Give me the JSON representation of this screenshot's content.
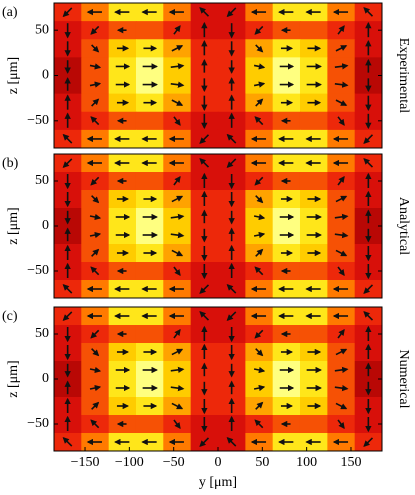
{
  "chart_data": [
    {
      "type": "heatmap",
      "annotation": "(a)",
      "side_label": "Experimental",
      "ylabel": "z [μm]",
      "xlim": [
        -185,
        185
      ],
      "ylim": [
        -80,
        80
      ],
      "yticks": [
        50,
        0,
        {
          "value": -50,
          "label": "−50"
        }
      ],
      "zlim": [
        0,
        1
      ],
      "colormap": [
        "#9a0000",
        "#e8140c",
        "#ff7a00",
        "#ffe000",
        "#ffff80"
      ],
      "x": [
        -169.6,
        -138.8,
        -107.9,
        -77.1,
        -46.3,
        -15.4,
        15.4,
        46.3,
        77.1,
        107.9,
        138.8,
        169.6
      ],
      "y": [
        70,
        50,
        30,
        10,
        -10,
        -30,
        -50,
        -70
      ],
      "z": [
        [
          0.3,
          0.5,
          0.8,
          0.8,
          0.5,
          0.2,
          0.2,
          0.5,
          0.8,
          0.8,
          0.5,
          0.3
        ],
        [
          0.2,
          0.3,
          0.4,
          0.4,
          0.3,
          0.2,
          0.2,
          0.3,
          0.4,
          0.4,
          0.3,
          0.2
        ],
        [
          0.2,
          0.4,
          0.7,
          0.8,
          0.6,
          0.3,
          0.3,
          0.6,
          0.8,
          0.7,
          0.4,
          0.2
        ],
        [
          0.1,
          0.4,
          0.8,
          1,
          0.7,
          0.3,
          0.3,
          0.7,
          1,
          0.8,
          0.4,
          0.1
        ],
        [
          0.1,
          0.4,
          0.8,
          1,
          0.7,
          0.3,
          0.3,
          0.7,
          1,
          0.8,
          0.4,
          0.1
        ],
        [
          0.2,
          0.4,
          0.7,
          0.8,
          0.6,
          0.3,
          0.3,
          0.6,
          0.8,
          0.7,
          0.4,
          0.2
        ],
        [
          0.2,
          0.3,
          0.4,
          0.4,
          0.3,
          0.2,
          0.2,
          0.3,
          0.4,
          0.4,
          0.3,
          0.2
        ],
        [
          0.3,
          0.5,
          0.8,
          0.8,
          0.5,
          0.2,
          0.2,
          0.5,
          0.8,
          0.8,
          0.5,
          0.3
        ]
      ],
      "u": [
        [
          -0.5,
          -1,
          -1,
          -1,
          -1,
          -0.5,
          -0.5,
          -1,
          -1,
          -1,
          -1,
          -0.5
        ],
        [
          0,
          -0.4,
          -0.3,
          0,
          0.3,
          0,
          0,
          -0.4,
          -0.3,
          0,
          0.3,
          0
        ],
        [
          0,
          0.3,
          0.6,
          0.8,
          0.6,
          0,
          0,
          0.3,
          0.6,
          0.8,
          0.6,
          0
        ],
        [
          0,
          0.5,
          0.9,
          1,
          0.8,
          0,
          0,
          0.5,
          0.9,
          1,
          0.8,
          0
        ],
        [
          0,
          0.5,
          0.9,
          1,
          0.8,
          0,
          0,
          0.5,
          0.9,
          1,
          0.8,
          0
        ],
        [
          0,
          0.3,
          0.6,
          0.8,
          0.6,
          0,
          0,
          0.3,
          0.6,
          0.8,
          0.6,
          0
        ],
        [
          0,
          -0.4,
          -0.3,
          0,
          0.3,
          0,
          0,
          -0.4,
          -0.3,
          0,
          0.3,
          0
        ],
        [
          -0.5,
          -1,
          -1,
          -1,
          -1,
          -0.5,
          -0.5,
          -1,
          -1,
          -1,
          -1,
          -0.5
        ]
      ],
      "v": [
        [
          -0.5,
          0,
          0,
          0,
          0,
          0.5,
          -0.5,
          0,
          0,
          0,
          0,
          0.5
        ],
        [
          -1,
          -0.4,
          0,
          0,
          0.4,
          1,
          -1,
          -0.4,
          0,
          0,
          0.4,
          1
        ],
        [
          -1,
          -0.3,
          0,
          0,
          0.3,
          1,
          -1,
          -0.3,
          0,
          0,
          0.3,
          1
        ],
        [
          -0.8,
          -0.1,
          0,
          0,
          0.1,
          0.8,
          -0.8,
          -0.1,
          0,
          0,
          0.1,
          0.8
        ],
        [
          0.8,
          0.1,
          0,
          0,
          -0.1,
          -0.8,
          0.8,
          0.1,
          0,
          0,
          -0.1,
          -0.8
        ],
        [
          1,
          0.3,
          0,
          0,
          -0.3,
          -1,
          1,
          0.3,
          0,
          0,
          -0.3,
          -1
        ],
        [
          1,
          0.4,
          0,
          0,
          -0.4,
          -1,
          1,
          0.4,
          0,
          0,
          -0.4,
          -1
        ],
        [
          0.5,
          0,
          0,
          0,
          0,
          -0.5,
          0.5,
          0,
          0,
          0,
          0,
          -0.5
        ]
      ]
    },
    {
      "type": "heatmap",
      "annotation": "(b)",
      "side_label": "Analytical",
      "ylabel": "z [μm]",
      "xlim": [
        -185,
        185
      ],
      "ylim": [
        -80,
        80
      ],
      "yticks": [
        50,
        0,
        {
          "value": -50,
          "label": "−50"
        }
      ],
      "zlim": [
        0,
        1
      ],
      "colormap": [
        "#9a0000",
        "#e8140c",
        "#ff7a00",
        "#ffe000",
        "#ffff80"
      ],
      "x": [
        -169.6,
        -138.8,
        -107.9,
        -77.1,
        -46.3,
        -15.4,
        15.4,
        46.3,
        77.1,
        107.9,
        138.8,
        169.6
      ],
      "y": [
        70,
        50,
        30,
        10,
        -10,
        -30,
        -50,
        -70
      ],
      "z": [
        [
          0.3,
          0.5,
          0.8,
          0.8,
          0.5,
          0.2,
          0.2,
          0.5,
          0.8,
          0.8,
          0.5,
          0.3
        ],
        [
          0.2,
          0.3,
          0.4,
          0.4,
          0.3,
          0.2,
          0.2,
          0.3,
          0.4,
          0.4,
          0.3,
          0.2
        ],
        [
          0.2,
          0.4,
          0.7,
          0.8,
          0.6,
          0.3,
          0.3,
          0.6,
          0.8,
          0.7,
          0.4,
          0.2
        ],
        [
          0.1,
          0.4,
          0.8,
          1,
          0.7,
          0.3,
          0.3,
          0.7,
          1,
          0.8,
          0.4,
          0.1
        ],
        [
          0.1,
          0.4,
          0.8,
          1,
          0.7,
          0.3,
          0.3,
          0.7,
          1,
          0.8,
          0.4,
          0.1
        ],
        [
          0.2,
          0.4,
          0.7,
          0.8,
          0.6,
          0.3,
          0.3,
          0.6,
          0.8,
          0.7,
          0.4,
          0.2
        ],
        [
          0.2,
          0.3,
          0.4,
          0.4,
          0.3,
          0.2,
          0.2,
          0.3,
          0.4,
          0.4,
          0.3,
          0.2
        ],
        [
          0.3,
          0.5,
          0.8,
          0.8,
          0.5,
          0.2,
          0.2,
          0.5,
          0.8,
          0.8,
          0.5,
          0.3
        ]
      ],
      "u": [
        [
          -0.5,
          -1,
          -1,
          -1,
          -1,
          -0.5,
          -0.5,
          -1,
          -1,
          -1,
          -1,
          -0.5
        ],
        [
          0,
          -0.4,
          -0.3,
          0,
          0.3,
          0,
          0,
          -0.4,
          -0.3,
          0,
          0.3,
          0
        ],
        [
          0,
          0.3,
          0.6,
          0.8,
          0.6,
          0,
          0,
          0.3,
          0.6,
          0.8,
          0.6,
          0
        ],
        [
          0,
          0.5,
          0.9,
          1,
          0.8,
          0,
          0,
          0.5,
          0.9,
          1,
          0.8,
          0
        ],
        [
          0,
          0.5,
          0.9,
          1,
          0.8,
          0,
          0,
          0.5,
          0.9,
          1,
          0.8,
          0
        ],
        [
          0,
          0.3,
          0.6,
          0.8,
          0.6,
          0,
          0,
          0.3,
          0.6,
          0.8,
          0.6,
          0
        ],
        [
          0,
          -0.4,
          -0.3,
          0,
          0.3,
          0,
          0,
          -0.4,
          -0.3,
          0,
          0.3,
          0
        ],
        [
          -0.5,
          -1,
          -1,
          -1,
          -1,
          -0.5,
          -0.5,
          -1,
          -1,
          -1,
          -1,
          -0.5
        ]
      ],
      "v": [
        [
          -0.5,
          0,
          0,
          0,
          0,
          0.5,
          -0.5,
          0,
          0,
          0,
          0,
          0.5
        ],
        [
          -1,
          -0.4,
          0,
          0,
          0.4,
          1,
          -1,
          -0.4,
          0,
          0,
          0.4,
          1
        ],
        [
          -1,
          -0.3,
          0,
          0,
          0.3,
          1,
          -1,
          -0.3,
          0,
          0,
          0.3,
          1
        ],
        [
          -0.8,
          -0.1,
          0,
          0,
          0.1,
          0.8,
          -0.8,
          -0.1,
          0,
          0,
          0.1,
          0.8
        ],
        [
          0.8,
          0.1,
          0,
          0,
          -0.1,
          -0.8,
          0.8,
          0.1,
          0,
          0,
          -0.1,
          -0.8
        ],
        [
          1,
          0.3,
          0,
          0,
          -0.3,
          -1,
          1,
          0.3,
          0,
          0,
          -0.3,
          -1
        ],
        [
          1,
          0.4,
          0,
          0,
          -0.4,
          -1,
          1,
          0.4,
          0,
          0,
          -0.4,
          -1
        ],
        [
          0.5,
          0,
          0,
          0,
          0,
          -0.5,
          0.5,
          0,
          0,
          0,
          0,
          -0.5
        ]
      ]
    },
    {
      "type": "heatmap",
      "annotation": "(c)",
      "side_label": "Numerical",
      "ylabel": "z [μm]",
      "xlabel": "y [μm]",
      "xlim": [
        -185,
        185
      ],
      "ylim": [
        -80,
        80
      ],
      "xticks": [
        {
          "value": -150,
          "label": "−150"
        },
        {
          "value": -100,
          "label": "−100"
        },
        {
          "value": -50,
          "label": "−50"
        },
        0,
        50,
        100,
        150
      ],
      "yticks": [
        50,
        0,
        {
          "value": -50,
          "label": "−50"
        }
      ],
      "zlim": [
        0,
        1
      ],
      "colormap": [
        "#9a0000",
        "#e8140c",
        "#ff7a00",
        "#ffe000",
        "#ffff80"
      ],
      "x": [
        -169.6,
        -138.8,
        -107.9,
        -77.1,
        -46.3,
        -15.4,
        15.4,
        46.3,
        77.1,
        107.9,
        138.8,
        169.6
      ],
      "y": [
        70,
        50,
        30,
        10,
        -10,
        -30,
        -50,
        -70
      ],
      "z": [
        [
          0.3,
          0.5,
          0.8,
          0.8,
          0.5,
          0.2,
          0.2,
          0.5,
          0.8,
          0.8,
          0.5,
          0.3
        ],
        [
          0.2,
          0.3,
          0.4,
          0.4,
          0.3,
          0.2,
          0.2,
          0.3,
          0.4,
          0.4,
          0.3,
          0.2
        ],
        [
          0.2,
          0.4,
          0.7,
          0.8,
          0.6,
          0.3,
          0.3,
          0.6,
          0.8,
          0.7,
          0.4,
          0.2
        ],
        [
          0.1,
          0.4,
          0.8,
          1,
          0.7,
          0.3,
          0.3,
          0.7,
          1,
          0.8,
          0.4,
          0.1
        ],
        [
          0.1,
          0.4,
          0.8,
          1,
          0.7,
          0.3,
          0.3,
          0.7,
          1,
          0.8,
          0.4,
          0.1
        ],
        [
          0.2,
          0.4,
          0.7,
          0.8,
          0.6,
          0.3,
          0.3,
          0.6,
          0.8,
          0.7,
          0.4,
          0.2
        ],
        [
          0.2,
          0.3,
          0.4,
          0.4,
          0.3,
          0.2,
          0.2,
          0.3,
          0.4,
          0.4,
          0.3,
          0.2
        ],
        [
          0.3,
          0.5,
          0.8,
          0.8,
          0.5,
          0.2,
          0.2,
          0.5,
          0.8,
          0.8,
          0.5,
          0.3
        ]
      ],
      "u": [
        [
          -0.5,
          -1,
          -1,
          -1,
          -1,
          -0.5,
          -0.5,
          -1,
          -1,
          -1,
          -1,
          -0.5
        ],
        [
          0,
          -0.4,
          -0.3,
          0,
          0.3,
          0,
          0,
          -0.4,
          -0.3,
          0,
          0.3,
          0
        ],
        [
          0,
          0.3,
          0.6,
          0.8,
          0.6,
          0,
          0,
          0.3,
          0.6,
          0.8,
          0.6,
          0
        ],
        [
          0,
          0.5,
          0.9,
          1,
          0.8,
          0,
          0,
          0.5,
          0.9,
          1,
          0.8,
          0
        ],
        [
          0,
          0.5,
          0.9,
          1,
          0.8,
          0,
          0,
          0.5,
          0.9,
          1,
          0.8,
          0
        ],
        [
          0,
          0.3,
          0.6,
          0.8,
          0.6,
          0,
          0,
          0.3,
          0.6,
          0.8,
          0.6,
          0
        ],
        [
          0,
          -0.4,
          -0.3,
          0,
          0.3,
          0,
          0,
          -0.4,
          -0.3,
          0,
          0.3,
          0
        ],
        [
          -0.5,
          -1,
          -1,
          -1,
          -1,
          -0.5,
          -0.5,
          -1,
          -1,
          -1,
          -1,
          -0.5
        ]
      ],
      "v": [
        [
          -0.5,
          0,
          0,
          0,
          0,
          0.5,
          -0.5,
          0,
          0,
          0,
          0,
          0.5
        ],
        [
          -1,
          -0.4,
          0,
          0,
          0.4,
          1,
          -1,
          -0.4,
          0,
          0,
          0.4,
          1
        ],
        [
          -1,
          -0.3,
          0,
          0,
          0.3,
          1,
          -1,
          -0.3,
          0,
          0,
          0.3,
          1
        ],
        [
          -0.8,
          -0.1,
          0,
          0,
          0.1,
          0.8,
          -0.8,
          -0.1,
          0,
          0,
          0.1,
          0.8
        ],
        [
          0.8,
          0.1,
          0,
          0,
          -0.1,
          -0.8,
          0.8,
          0.1,
          0,
          0,
          -0.1,
          -0.8
        ],
        [
          1,
          0.3,
          0,
          0,
          -0.3,
          -1,
          1,
          0.3,
          0,
          0,
          -0.3,
          -1
        ],
        [
          1,
          0.4,
          0,
          0,
          -0.4,
          -1,
          1,
          0.4,
          0,
          0,
          -0.4,
          -1
        ],
        [
          0.5,
          0,
          0,
          0,
          0,
          -0.5,
          0.5,
          0,
          0,
          0,
          0,
          -0.5
        ]
      ]
    }
  ]
}
